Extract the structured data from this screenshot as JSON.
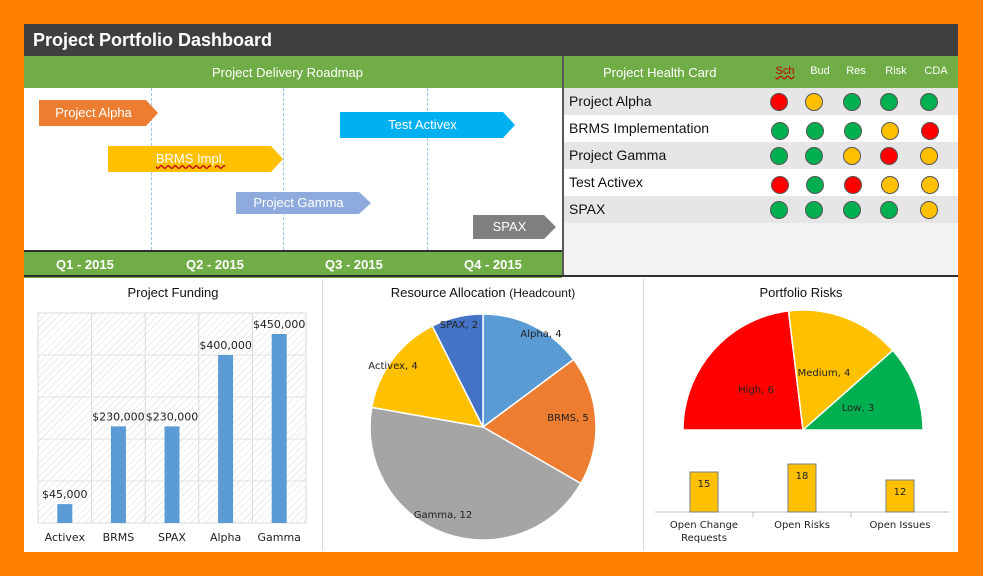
{
  "title": "Project Portfolio Dashboard",
  "roadmap": {
    "header": "Project Delivery Roadmap",
    "quarters": [
      "Q1 - 2015",
      "Q2 - 2015",
      "Q3 - 2015",
      "Q4 - 2015"
    ],
    "projects": [
      {
        "name": "Project Alpha",
        "color": "#ed7d31"
      },
      {
        "name": "Test Activex",
        "color": "#00b0f0"
      },
      {
        "name": "BRMS Impl.",
        "color": "#ffc000"
      },
      {
        "name": "Project Gamma",
        "color": "#8faadc"
      },
      {
        "name": "SPAX",
        "color": "#7f7f7f"
      }
    ]
  },
  "health_card": {
    "header": "Project Health Card",
    "columns": [
      "Sch",
      "Bud",
      "Res",
      "Risk",
      "CDA"
    ],
    "rows": [
      {
        "name": "Project Alpha",
        "status": [
          "red",
          "yellow",
          "green",
          "green",
          "green"
        ]
      },
      {
        "name": "BRMS Implementation",
        "status": [
          "green",
          "green",
          "green",
          "yellow",
          "red"
        ]
      },
      {
        "name": "Project Gamma",
        "status": [
          "green",
          "green",
          "yellow",
          "red",
          "yellow"
        ]
      },
      {
        "name": "Test Activex",
        "status": [
          "red",
          "green",
          "red",
          "yellow",
          "yellow"
        ]
      },
      {
        "name": "SPAX",
        "status": [
          "green",
          "green",
          "green",
          "green",
          "yellow"
        ]
      }
    ],
    "colors": {
      "red": "#ff0000",
      "yellow": "#ffc000",
      "green": "#00b050"
    }
  },
  "chart_data": [
    {
      "type": "bar",
      "title": "Project Funding",
      "categories": [
        "Activex",
        "BRMS",
        "SPAX",
        "Alpha",
        "Gamma"
      ],
      "values": [
        45000,
        230000,
        230000,
        400000,
        450000
      ],
      "labels": [
        "$45,000",
        "$230,000",
        "$230,000",
        "$400,000",
        "$450,000"
      ],
      "ylim": [
        0,
        500000
      ],
      "color": "#5b9bd5"
    },
    {
      "type": "pie",
      "title": "Resource Allocation",
      "title_suffix": "(Headcount)",
      "slices": [
        {
          "name": "Alpha",
          "value": 4,
          "label": "Alpha, 4",
          "color": "#5b9bd5"
        },
        {
          "name": "BRMS",
          "value": 5,
          "label": "BRMS, 5",
          "color": "#ed7d31"
        },
        {
          "name": "Gamma",
          "value": 12,
          "label": "Gamma, 12",
          "color": "#a5a5a5"
        },
        {
          "name": "Activex",
          "value": 4,
          "label": "Activex, 4",
          "color": "#ffc000"
        },
        {
          "name": "SPAX",
          "value": 2,
          "label": "SPAX, 2",
          "color": "#4472c4"
        }
      ]
    },
    {
      "type": "pie",
      "subtype": "half-donut",
      "title": "Portfolio Risks",
      "slices": [
        {
          "name": "High",
          "value": 6,
          "label": "High, 6",
          "color": "#ff0000"
        },
        {
          "name": "Medium",
          "value": 4,
          "label": "Medium, 4",
          "color": "#ffc000"
        },
        {
          "name": "Low",
          "value": 3,
          "label": "Low, 3",
          "color": "#00b050"
        }
      ]
    },
    {
      "type": "bar",
      "categories": [
        "Open Change Requests",
        "Open Risks",
        "Open Issues"
      ],
      "category_lines": [
        [
          "Open Change",
          "Requests"
        ],
        [
          "Open Risks"
        ],
        [
          "Open Issues"
        ]
      ],
      "values": [
        15,
        18,
        12
      ],
      "color": "#ffc000"
    }
  ]
}
